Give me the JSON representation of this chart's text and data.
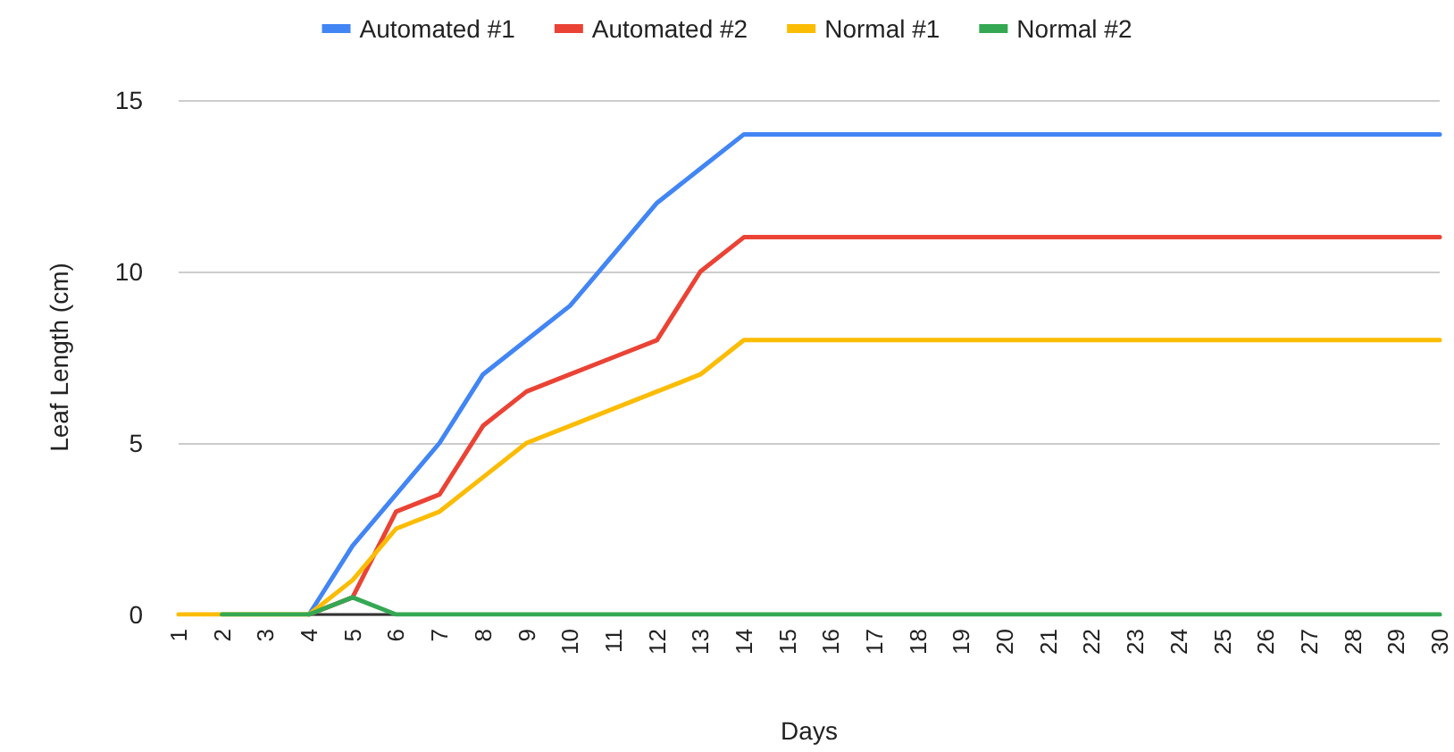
{
  "chart_data": {
    "type": "line",
    "xlabel": "Days",
    "ylabel": "Leaf Length (cm)",
    "categories": [
      "1",
      "2",
      "3",
      "4",
      "5",
      "6",
      "7",
      "8",
      "9",
      "10",
      "11",
      "12",
      "13",
      "14",
      "15",
      "16",
      "17",
      "18",
      "19",
      "20",
      "21",
      "22",
      "23",
      "24",
      "25",
      "26",
      "27",
      "28",
      "29",
      "30"
    ],
    "series": [
      {
        "name": "Automated #1",
        "color": "#4285f4",
        "values": [
          null,
          null,
          null,
          0,
          2,
          3.5,
          5,
          7,
          8,
          9,
          10.5,
          12,
          13,
          14,
          14,
          14,
          14,
          14,
          14,
          14,
          14,
          14,
          14,
          14,
          14,
          14,
          14,
          14,
          14,
          14
        ]
      },
      {
        "name": "Automated #2",
        "color": "#ea4335",
        "values": [
          null,
          null,
          null,
          0,
          0.5,
          3,
          3.5,
          5.5,
          6.5,
          7,
          7.5,
          8,
          10,
          11,
          11,
          11,
          11,
          11,
          11,
          11,
          11,
          11,
          11,
          11,
          11,
          11,
          11,
          11,
          11,
          11
        ]
      },
      {
        "name": "Normal #1",
        "color": "#fbbc04",
        "values": [
          0,
          0,
          0,
          0,
          1,
          2.5,
          3,
          4,
          5,
          5.5,
          6,
          6.5,
          7,
          8,
          8,
          8,
          8,
          8,
          8,
          8,
          8,
          8,
          8,
          8,
          8,
          8,
          8,
          8,
          8,
          8
        ]
      },
      {
        "name": "Normal #2",
        "color": "#34a853",
        "values": [
          null,
          0,
          0,
          0,
          0.5,
          0,
          0,
          0,
          0,
          0,
          0,
          0,
          0,
          0,
          0,
          0,
          0,
          0,
          0,
          0,
          0,
          0,
          0,
          0,
          0,
          0,
          0,
          0,
          0,
          0
        ]
      }
    ],
    "ylim": [
      0,
      15
    ],
    "yticks": [
      0,
      5,
      10,
      15
    ],
    "grid": "y",
    "legend": "top",
    "marker": "none",
    "line_style": "solid"
  }
}
